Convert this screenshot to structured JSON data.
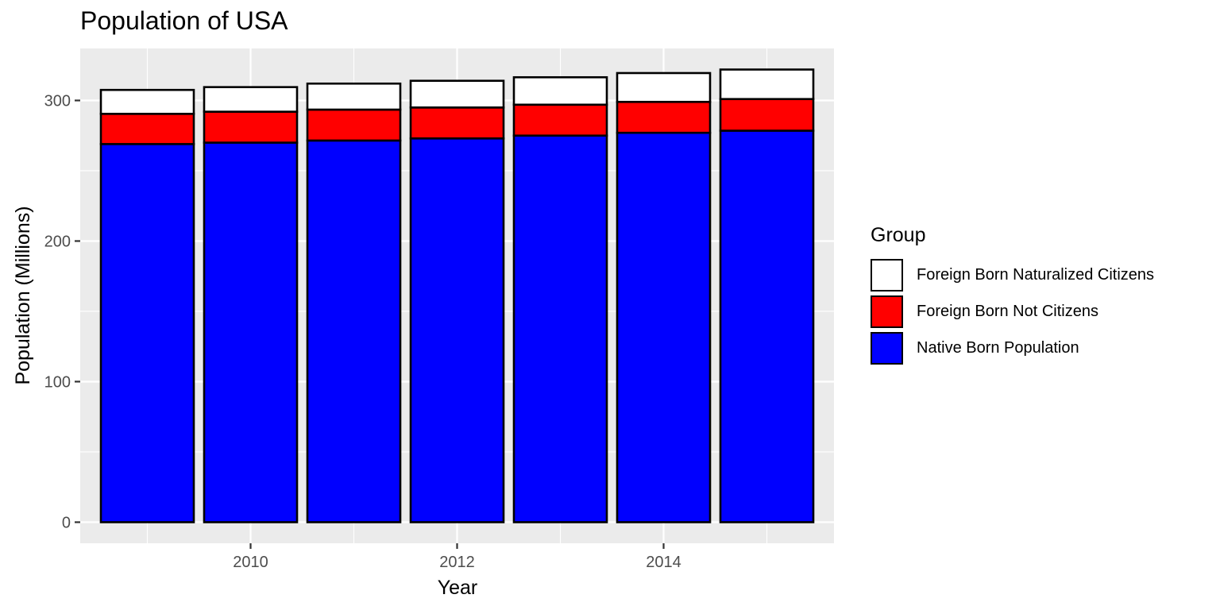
{
  "chart_data": {
    "type": "bar",
    "stacked": true,
    "title": "Population of USA",
    "xlabel": "Year",
    "ylabel": "Population (Millions)",
    "x": [
      2009,
      2010,
      2011,
      2012,
      2013,
      2014,
      2015
    ],
    "xticks": [
      "2010",
      "2012",
      "2014"
    ],
    "xlim": [
      2008.35,
      2015.65
    ],
    "ylim": [
      -15,
      337
    ],
    "yticks": [
      "0",
      "100",
      "200",
      "300"
    ],
    "grid": true,
    "legend": {
      "title": "Group",
      "position": "right",
      "order": [
        "Foreign Born Naturalized Citizens",
        "Foreign Born Not Citizens",
        "Native Born Population"
      ]
    },
    "series": [
      {
        "name": "Native Born Population",
        "color": "#0000FF",
        "values": [
          269.0,
          270.0,
          271.5,
          273.0,
          275.0,
          277.0,
          278.5
        ]
      },
      {
        "name": "Foreign Born Not Citizens",
        "color": "#FF0000",
        "values": [
          21.5,
          22.0,
          22.0,
          22.0,
          22.0,
          22.0,
          22.5
        ]
      },
      {
        "name": "Foreign Born Naturalized Citizens",
        "color": "#FFFFFF",
        "values": [
          17.0,
          17.5,
          18.5,
          19.0,
          19.5,
          20.5,
          21.0
        ]
      }
    ]
  }
}
